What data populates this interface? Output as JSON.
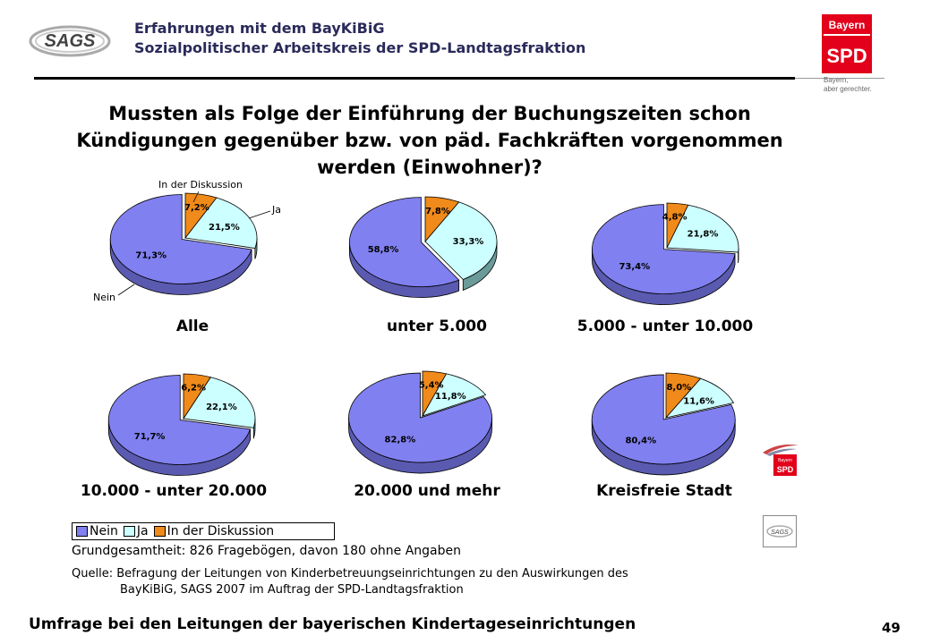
{
  "header": {
    "line1": "Erfahrungen mit dem BayKiBiG",
    "line2": "Sozialpolitischer Arbeitskreis der SPD-Landtagsfraktion"
  },
  "logos": {
    "sags_text": "SAGS",
    "spd_bayern": "Bayern",
    "spd_name": "SPD",
    "spd_slogan1": "Bayern,",
    "spd_slogan2": "aber gerechter."
  },
  "title": {
    "line1": "Mussten als Folge der Einführung der Buchungszeiten schon",
    "line2": "Kündigungen gegenüber bzw. von päd. Fachkräften vorgenommen",
    "line3": "werden (Einwohner)?"
  },
  "colors": {
    "nein": "#8080f0",
    "ja": "#ccffff",
    "diskussion": "#f08a1a",
    "nein_side": "#5a5ab0",
    "ja_side": "#6a9a9a",
    "diskussion_side": "#a85e10"
  },
  "chart_data": [
    {
      "type": "pie",
      "title": "Alle",
      "categories": [
        "Nein",
        "Ja",
        "In der Diskussion"
      ],
      "values": [
        71.3,
        21.5,
        7.2
      ],
      "labels": [
        "71,3%",
        "21,5%",
        "7,2%"
      ],
      "callouts": [
        "Nein",
        "Ja",
        "In der Diskussion"
      ]
    },
    {
      "type": "pie",
      "title": "unter 5.000",
      "categories": [
        "Nein",
        "Ja",
        "In der Diskussion"
      ],
      "values": [
        58.8,
        33.3,
        7.8
      ],
      "labels": [
        "58,8%",
        "33,3%",
        "7,8%"
      ]
    },
    {
      "type": "pie",
      "title": "5.000 - unter 10.000",
      "categories": [
        "Nein",
        "Ja",
        "In der Diskussion"
      ],
      "values": [
        73.4,
        21.8,
        4.8
      ],
      "labels": [
        "73,4%",
        "21,8%",
        "4,8%"
      ]
    },
    {
      "type": "pie",
      "title": "10.000 - unter 20.000",
      "categories": [
        "Nein",
        "Ja",
        "In der Diskussion"
      ],
      "values": [
        71.7,
        22.1,
        6.2
      ],
      "labels": [
        "71,7%",
        "22,1%",
        "6,2%"
      ]
    },
    {
      "type": "pie",
      "title": "20.000 und mehr",
      "categories": [
        "Nein",
        "Ja",
        "In der Diskussion"
      ],
      "values": [
        82.8,
        11.8,
        5.4
      ],
      "labels": [
        "82,8%",
        "11,8%",
        "5,4%"
      ]
    },
    {
      "type": "pie",
      "title": "Kreisfreie Stadt",
      "categories": [
        "Nein",
        "Ja",
        "In der Diskussion"
      ],
      "values": [
        80.4,
        11.6,
        8.0
      ],
      "labels": [
        "80,4%",
        "11,6%",
        "8,0%"
      ]
    }
  ],
  "legend": {
    "nein": "Nein",
    "ja": "Ja",
    "diskussion": "In der Diskussion"
  },
  "notes": {
    "grundgesamtheit": "Grundgesamtheit: 826 Fragebögen, davon 180 ohne Angaben",
    "quelle1": "Quelle: Befragung der Leitungen von Kinderbetreuungseinrichtungen zu den Auswirkungen des",
    "quelle2": "BayKiBiG, SAGS 2007 im Auftrag der SPD-Landtagsfraktion"
  },
  "footer": {
    "text": "Umfrage bei den Leitungen der bayerischen Kindertageseinrichtungen",
    "page": "49"
  }
}
